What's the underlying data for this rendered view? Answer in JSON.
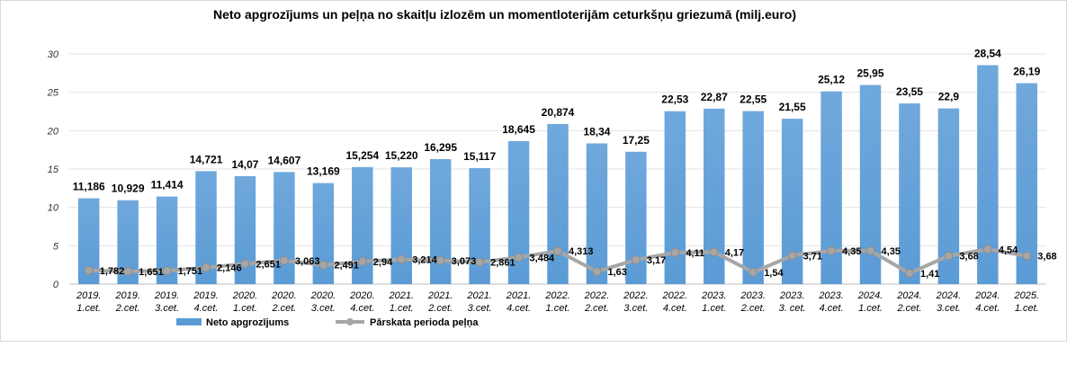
{
  "chart_data": {
    "type": "bar",
    "title": "Neto apgrozījums un peļņa no skaitļu izlozēm un momentloterijām  ceturkšņu griezumā (milj.euro)",
    "categories": [
      [
        "2019.",
        "1.cet."
      ],
      [
        "2019.",
        "2.cet."
      ],
      [
        "2019.",
        "3.cet."
      ],
      [
        "2019.",
        "4.cet."
      ],
      [
        "2020.",
        "1.cet."
      ],
      [
        "2020.",
        "2.cet."
      ],
      [
        "2020.",
        "3.cet."
      ],
      [
        "2020.",
        "4.cet."
      ],
      [
        "2021.",
        "1.cet."
      ],
      [
        "2021.",
        "2.cet."
      ],
      [
        "2021.",
        "3.cet."
      ],
      [
        "2021.",
        "4.cet."
      ],
      [
        "2022.",
        "1.cet."
      ],
      [
        "2022.",
        "2.cet."
      ],
      [
        "2022.",
        "3.cet."
      ],
      [
        "2022.",
        "4.cet."
      ],
      [
        "2023.",
        "1.cet."
      ],
      [
        "2023.",
        "2.cet."
      ],
      [
        "2023.",
        "3. cet."
      ],
      [
        "2023.",
        "4.cet."
      ],
      [
        "2024.",
        "1.cet."
      ],
      [
        "2024.",
        "2.cet."
      ],
      [
        "2024.",
        "3.cet."
      ],
      [
        "2024.",
        "4.cet."
      ],
      [
        "2025.",
        "1.cet."
      ]
    ],
    "series": [
      {
        "name": "Neto apgrozījums",
        "type": "bar",
        "color": "#5b9bd5",
        "values": [
          11.186,
          10.929,
          11.414,
          14.721,
          14.07,
          14.607,
          13.169,
          15.254,
          15.22,
          16.295,
          15.117,
          18.645,
          20.874,
          18.34,
          17.25,
          22.53,
          22.87,
          22.55,
          21.55,
          25.12,
          25.95,
          23.55,
          22.9,
          28.54,
          26.19
        ],
        "labels": [
          "11,186",
          "10,929",
          "11,414",
          "14,721",
          "14,07",
          "14,607",
          "13,169",
          "15,254",
          "15,220",
          "16,295",
          "15,117",
          "18,645",
          "20,874",
          "18,34",
          "17,25",
          "22,53",
          "22,87",
          "22,55",
          "21,55",
          "25,12",
          "25,95",
          "23,55",
          "22,9",
          "28,54",
          "26,19"
        ]
      },
      {
        "name": "Pārskata perioda peļņa",
        "type": "line",
        "color": "#a6a6a6",
        "values": [
          1.782,
          1.651,
          1.751,
          2.146,
          2.651,
          3.063,
          2.491,
          2.94,
          3.214,
          3.073,
          2.861,
          3.484,
          4.313,
          1.63,
          3.17,
          4.11,
          4.17,
          1.54,
          3.71,
          4.35,
          4.35,
          1.41,
          3.68,
          4.54,
          3.68
        ],
        "labels": [
          "1,782",
          "1,651",
          "1,751",
          "2,146",
          "2,651",
          "3,063",
          "2,491",
          "2,94",
          "3,214",
          "3,073",
          "2,861",
          "3,484",
          "4,313",
          "1,63",
          "3,17",
          "4,11",
          "4,17",
          "1,54",
          "3,71",
          "4,35",
          "4,35",
          "1,41",
          "3,68",
          "4,54",
          "3,68"
        ]
      }
    ],
    "ylim": [
      0,
      30
    ],
    "yticks": [
      0,
      5,
      10,
      15,
      20,
      25,
      30
    ],
    "grid": true,
    "legend": "bottom"
  }
}
